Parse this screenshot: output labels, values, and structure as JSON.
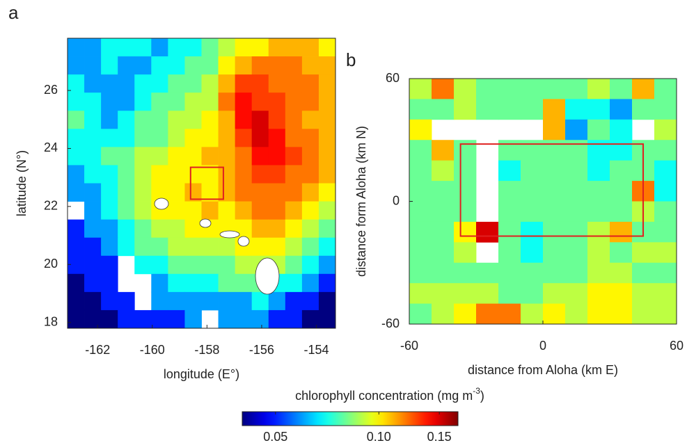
{
  "chart_data": [
    {
      "type": "heatmap",
      "panel_label": "a",
      "xlabel": "longitude (E°)",
      "ylabel": "latitude (N°)",
      "xlim": [
        -163.1,
        -153.3
      ],
      "ylim": [
        17.8,
        27.8
      ],
      "xticks": [
        -162,
        -160,
        -158,
        -156,
        -154
      ],
      "yticks": [
        18,
        20,
        22,
        24,
        26
      ],
      "box": {
        "x": [
          -158.6,
          -157.4
        ],
        "y": [
          22.25,
          23.35
        ],
        "color": "#e02020"
      },
      "z": [
        [
          0.06,
          0.06,
          0.07,
          0.07,
          0.07,
          0.06,
          0.07,
          0.07,
          0.08,
          0.09,
          0.1,
          0.1,
          0.11,
          0.11,
          0.11,
          0.1
        ],
        [
          0.06,
          0.06,
          0.07,
          0.06,
          0.06,
          0.07,
          0.07,
          0.08,
          0.08,
          0.1,
          0.11,
          0.12,
          0.12,
          0.12,
          0.11,
          0.11
        ],
        [
          0.07,
          0.06,
          0.06,
          0.06,
          0.07,
          0.07,
          0.08,
          0.08,
          0.09,
          0.11,
          0.13,
          0.13,
          0.12,
          0.12,
          0.12,
          0.11
        ],
        [
          0.07,
          0.07,
          0.06,
          0.06,
          0.07,
          0.08,
          0.08,
          0.09,
          0.09,
          0.12,
          0.14,
          0.13,
          0.13,
          0.12,
          0.12,
          0.11
        ],
        [
          0.08,
          0.07,
          0.06,
          0.07,
          0.08,
          0.08,
          0.09,
          0.09,
          0.1,
          0.11,
          0.14,
          0.15,
          0.13,
          0.12,
          0.11,
          0.11
        ],
        [
          0.07,
          0.07,
          0.07,
          0.07,
          0.08,
          0.08,
          0.09,
          0.1,
          0.1,
          0.11,
          0.13,
          0.15,
          0.14,
          0.12,
          0.12,
          0.11
        ],
        [
          0.07,
          0.07,
          0.08,
          0.08,
          0.09,
          0.09,
          0.1,
          0.1,
          0.11,
          0.11,
          0.12,
          0.14,
          0.14,
          0.13,
          0.12,
          0.11
        ],
        [
          0.06,
          0.07,
          0.07,
          0.08,
          0.09,
          0.1,
          0.1,
          0.1,
          0.1,
          0.11,
          0.12,
          0.13,
          0.13,
          0.12,
          0.12,
          0.11
        ],
        [
          0.06,
          0.06,
          0.07,
          0.08,
          0.09,
          0.1,
          0.1,
          0.11,
          0.1,
          0.11,
          0.12,
          0.12,
          0.12,
          0.12,
          0.11,
          0.1
        ],
        [
          null,
          0.06,
          0.07,
          0.08,
          0.09,
          0.1,
          0.1,
          0.1,
          0.11,
          0.1,
          0.11,
          0.12,
          0.12,
          0.11,
          0.1,
          0.09
        ],
        [
          0.05,
          0.06,
          0.06,
          0.07,
          0.08,
          0.09,
          0.09,
          0.1,
          0.1,
          0.1,
          0.1,
          0.11,
          0.11,
          0.1,
          0.09,
          0.08
        ],
        [
          0.05,
          0.05,
          0.06,
          0.07,
          0.08,
          0.08,
          0.09,
          0.09,
          0.09,
          0.09,
          0.1,
          0.1,
          0.1,
          0.09,
          0.08,
          0.07
        ],
        [
          0.05,
          0.05,
          0.05,
          null,
          0.07,
          0.07,
          0.08,
          0.08,
          0.08,
          0.08,
          0.09,
          0.09,
          0.09,
          0.08,
          0.07,
          0.06
        ],
        [
          0.04,
          0.05,
          0.05,
          null,
          null,
          0.06,
          0.07,
          0.07,
          0.07,
          0.08,
          0.08,
          0.08,
          0.07,
          0.07,
          0.06,
          0.05
        ],
        [
          0.04,
          0.04,
          0.05,
          0.05,
          null,
          0.06,
          0.06,
          0.06,
          0.06,
          0.06,
          0.06,
          0.07,
          0.06,
          0.05,
          0.05,
          0.04
        ],
        [
          0.04,
          0.04,
          0.04,
          0.05,
          0.05,
          0.05,
          0.05,
          0.06,
          null,
          0.06,
          0.06,
          0.06,
          0.05,
          0.05,
          0.04,
          0.04
        ]
      ]
    },
    {
      "type": "heatmap",
      "panel_label": "b",
      "xlabel": "distance from Aloha (km E)",
      "ylabel": "distance form Aloha (km N)",
      "xlim": [
        -60,
        60
      ],
      "ylim": [
        -60,
        60
      ],
      "xticks": [
        -60,
        0,
        60
      ],
      "yticks": [
        -60,
        0,
        60
      ],
      "box": {
        "x": [
          -37,
          45
        ],
        "y": [
          -17,
          28
        ],
        "color": "#e02020"
      },
      "z": [
        [
          0.09,
          0.12,
          0.09,
          0.08,
          0.08,
          0.08,
          0.08,
          0.08,
          0.09,
          0.08,
          0.11,
          0.08
        ],
        [
          0.08,
          0.08,
          0.09,
          0.08,
          0.08,
          0.08,
          0.11,
          0.07,
          0.07,
          0.06,
          0.08,
          0.08
        ],
        [
          0.1,
          null,
          null,
          null,
          null,
          null,
          0.11,
          0.06,
          0.08,
          0.07,
          null,
          0.09
        ],
        [
          0.08,
          0.11,
          0.08,
          null,
          0.08,
          0.08,
          0.08,
          0.08,
          0.07,
          0.07,
          0.08,
          0.08
        ],
        [
          0.08,
          0.09,
          0.08,
          null,
          0.07,
          0.08,
          0.08,
          0.08,
          0.07,
          0.08,
          0.08,
          0.07
        ],
        [
          0.08,
          0.08,
          0.08,
          null,
          0.08,
          0.08,
          0.08,
          0.08,
          0.08,
          0.08,
          0.12,
          0.07
        ],
        [
          0.08,
          0.08,
          0.08,
          null,
          0.08,
          0.08,
          0.08,
          0.08,
          0.08,
          0.08,
          0.09,
          0.08
        ],
        [
          0.08,
          0.08,
          0.1,
          0.15,
          0.08,
          0.07,
          0.08,
          0.08,
          0.09,
          0.11,
          0.08,
          0.08
        ],
        [
          0.08,
          0.08,
          0.09,
          null,
          0.08,
          0.07,
          0.08,
          0.08,
          0.09,
          0.08,
          0.09,
          0.09
        ],
        [
          0.08,
          0.08,
          0.08,
          0.08,
          0.08,
          0.08,
          0.08,
          0.08,
          0.09,
          0.09,
          0.08,
          0.08
        ],
        [
          0.09,
          0.09,
          0.09,
          0.09,
          0.08,
          0.08,
          0.09,
          0.09,
          0.1,
          0.1,
          0.09,
          0.09
        ],
        [
          0.08,
          0.09,
          0.1,
          0.12,
          0.12,
          0.09,
          0.1,
          0.09,
          0.1,
          0.1,
          0.09,
          0.09
        ]
      ]
    }
  ],
  "colorbar": {
    "title": "chlorophyll concentration (mg m",
    "title_sup": "-3",
    "title_end": ")",
    "lim": [
      0.04,
      0.17
    ],
    "log": true,
    "colormap": "jet",
    "ticks": [
      0.05,
      {
        "value": 0.1,
        "label": "0.10"
      },
      0.15
    ]
  }
}
